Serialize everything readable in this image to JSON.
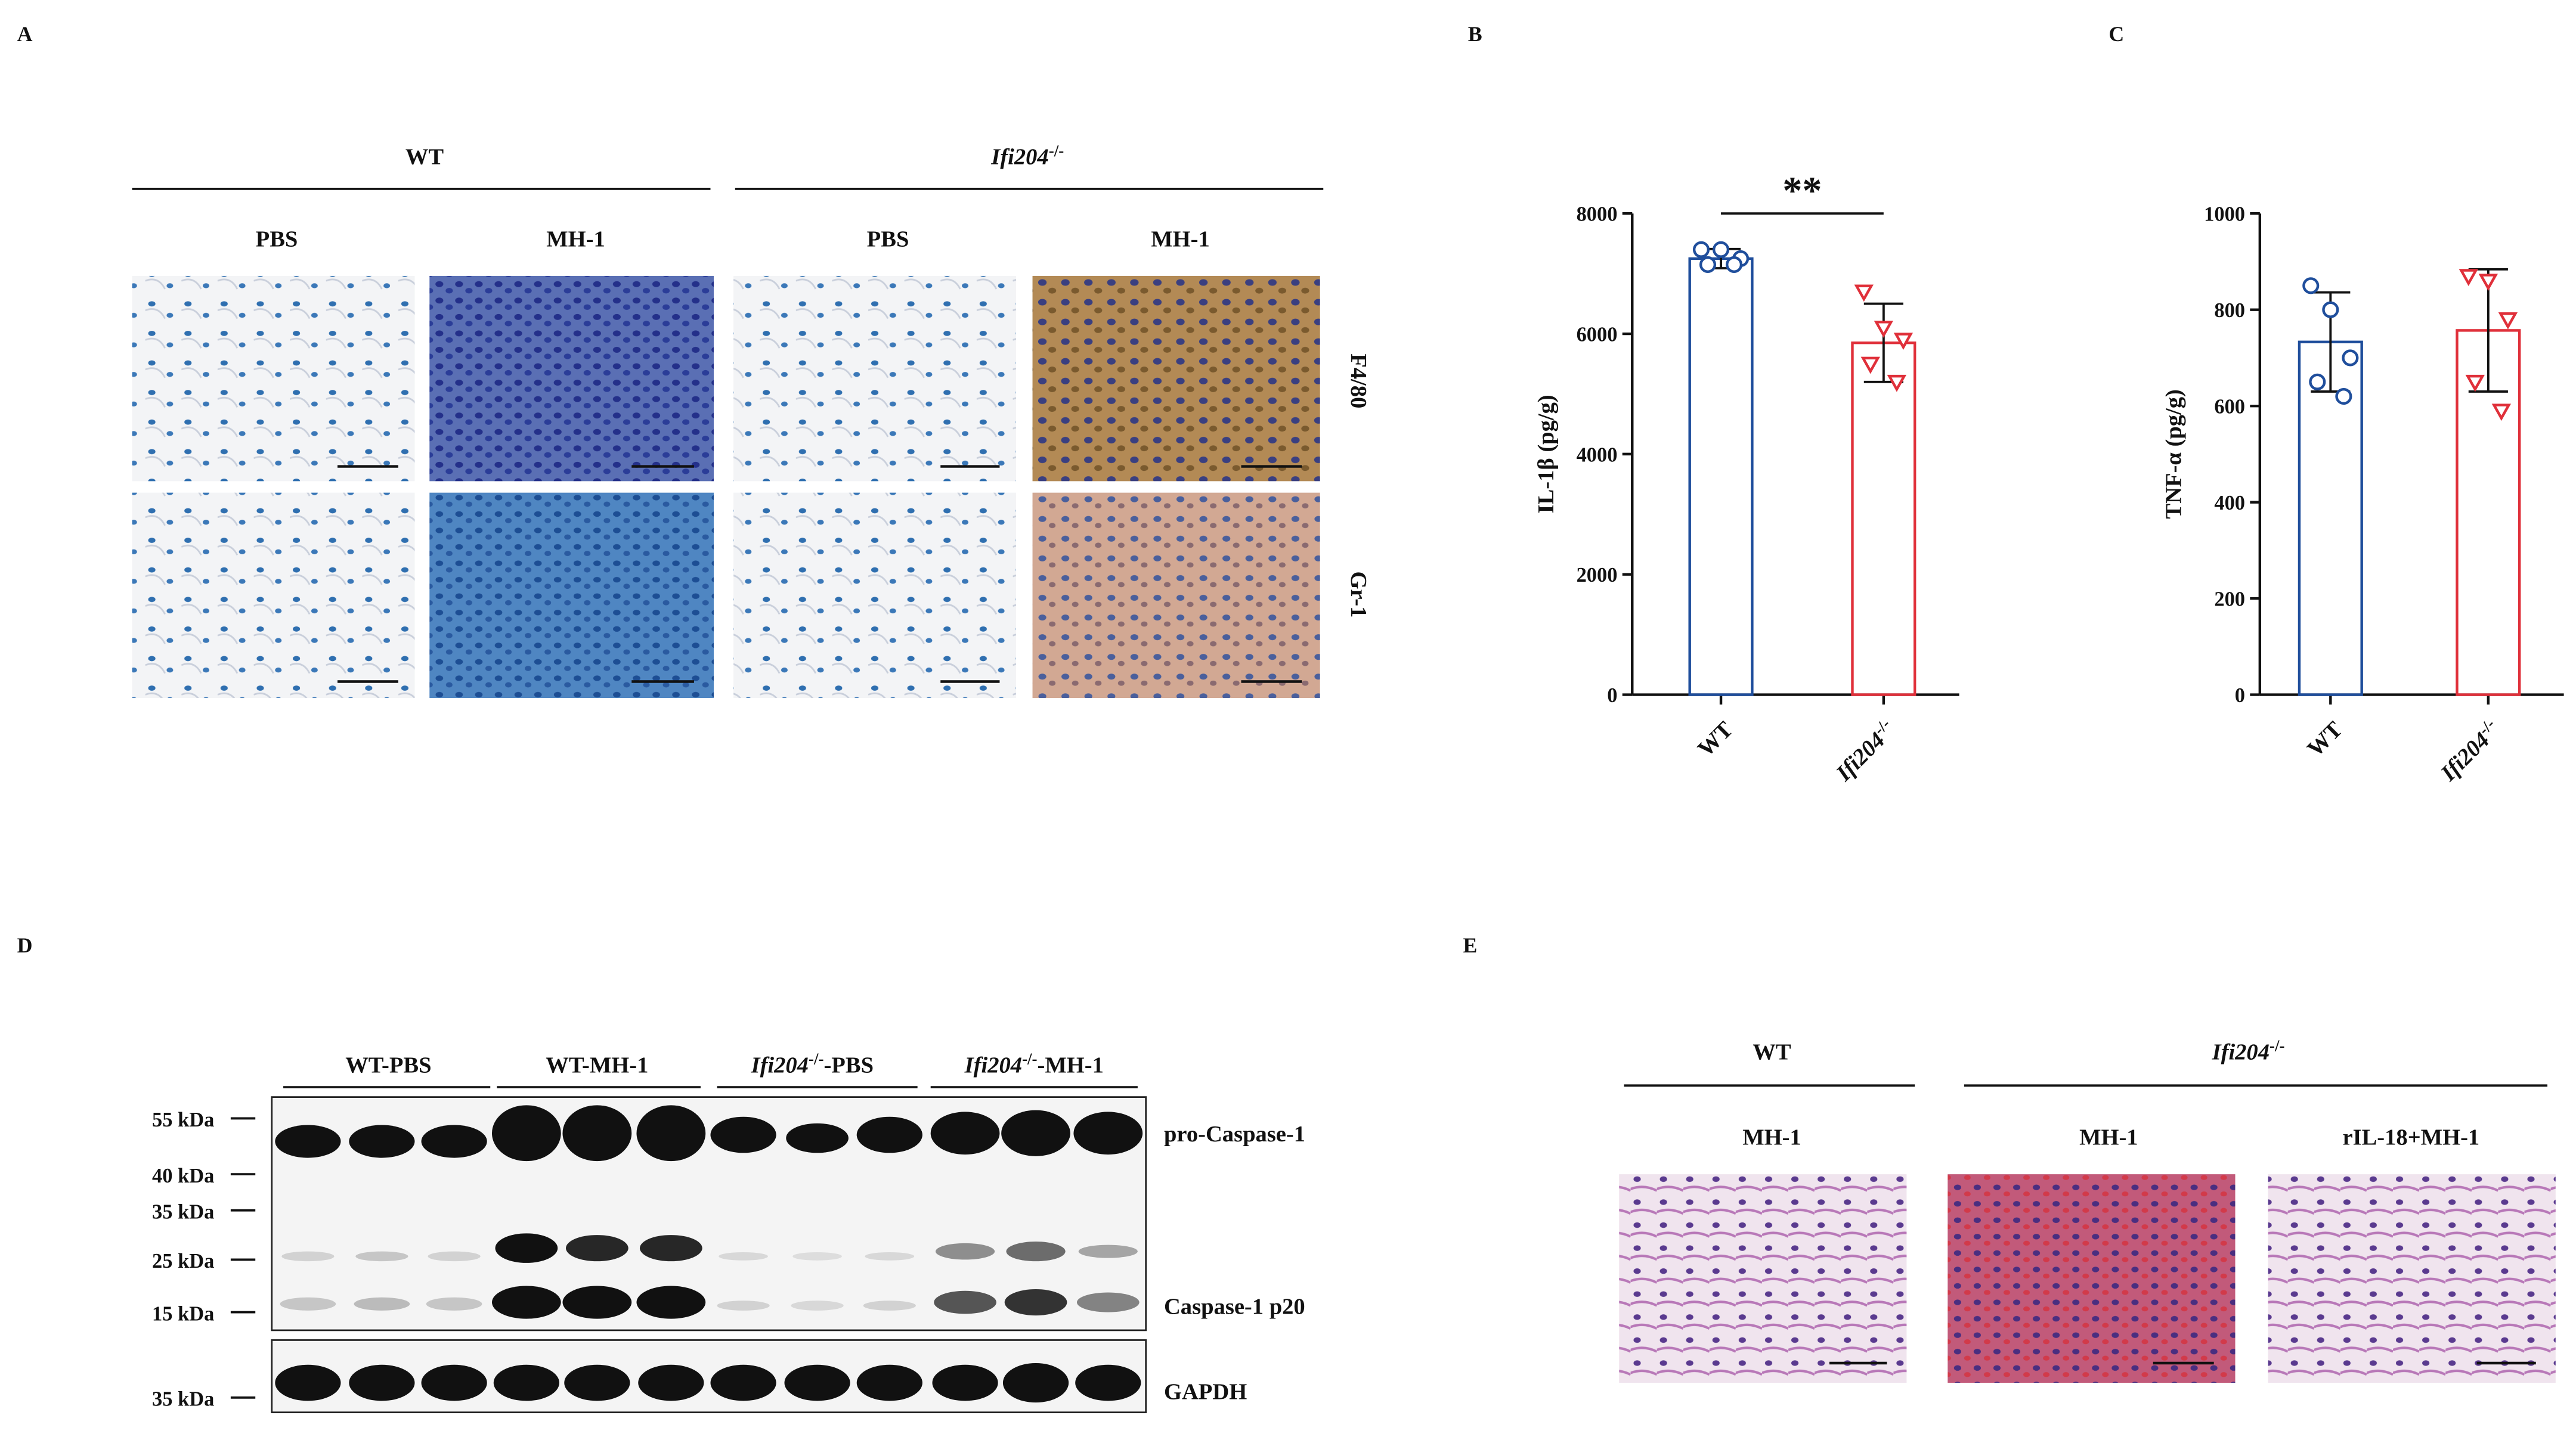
{
  "panel_a": {
    "label": "A",
    "groups": [
      {
        "name": "WT",
        "conditions": [
          "PBS",
          "MH-1"
        ]
      },
      {
        "name": "Ifi204-/-",
        "conditions": [
          "PBS",
          "MH-1"
        ]
      }
    ],
    "stains": [
      "F4/80",
      "Gr-1"
    ]
  },
  "chart_data": [
    {
      "type": "bar",
      "panel": "B",
      "y_label": "IL-1β (pg/g)",
      "categories": [
        "WT",
        "Ifi204-/-"
      ],
      "values": [
        7250,
        5850
      ],
      "errors": [
        160,
        650
      ],
      "points": [
        [
          7400,
          7400,
          7250,
          7150,
          7150
        ],
        [
          6700,
          6100,
          5900,
          5500,
          5200
        ]
      ],
      "colors": [
        "#1f4e9c",
        "#e0303a"
      ],
      "markers": [
        "circle",
        "triangle-down"
      ],
      "ylim": [
        0,
        8000
      ],
      "yticks": [
        0,
        2000,
        4000,
        6000,
        8000
      ],
      "annotation": "**"
    },
    {
      "type": "bar",
      "panel": "C",
      "y_label": "TNF-α (pg/g)",
      "categories": [
        "WT",
        "Ifi204-/-"
      ],
      "values": [
        733,
        757
      ],
      "errors": [
        103,
        127
      ],
      "points": [
        [
          850,
          800,
          700,
          650,
          620
        ],
        [
          870,
          860,
          780,
          650,
          590
        ]
      ],
      "colors": [
        "#1f4e9c",
        "#e0303a"
      ],
      "markers": [
        "circle",
        "triangle-down"
      ],
      "ylim": [
        0,
        1000
      ],
      "yticks": [
        0,
        200,
        400,
        600,
        800,
        1000
      ]
    }
  ],
  "panel_d": {
    "label": "D",
    "lanes": [
      "WT-PBS",
      "WT-MH-1",
      "Ifi204-/--PBS",
      "Ifi204-/--MH-1"
    ],
    "markers": [
      "55 kDa",
      "40 kDa",
      "35 kDa",
      "25 kDa",
      "15 kDa",
      "35 kDa"
    ],
    "bands": [
      "pro-Caspase-1",
      "Caspase-1 p20",
      "GAPDH"
    ]
  },
  "panel_e": {
    "label": "E",
    "groups": [
      {
        "name": "WT",
        "conditions": [
          "MH-1"
        ]
      },
      {
        "name": "Ifi204-/-",
        "conditions": [
          "MH-1",
          "rIL-18+MH-1"
        ]
      }
    ]
  }
}
